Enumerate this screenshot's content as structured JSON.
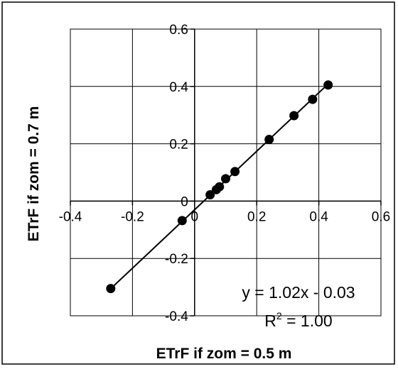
{
  "chart_data": {
    "type": "scatter",
    "xlabel": "ETrF if zom = 0.5 m",
    "ylabel": "ETrF if zom = 0.7 m",
    "xlim": [
      -0.4,
      0.6
    ],
    "ylim": [
      -0.4,
      0.6
    ],
    "x_ticks": [
      -0.4,
      -0.2,
      0,
      0.2,
      0.4,
      0.6
    ],
    "y_ticks": [
      -0.4,
      -0.2,
      0,
      0.2,
      0.4,
      0.6
    ],
    "x_tick_labels": [
      "-0.4",
      "-0.2",
      "0",
      "0.2",
      "0.4",
      "0.6"
    ],
    "y_tick_labels": [
      "-0.4",
      "-0.2",
      "0",
      "0.2",
      "0.4",
      "0.6"
    ],
    "grid": true,
    "series": [
      {
        "points": [
          [
            -0.27,
            -0.305
          ],
          [
            -0.04,
            -0.068
          ],
          [
            0.05,
            0.022
          ],
          [
            0.07,
            0.04
          ],
          [
            0.08,
            0.05
          ],
          [
            0.1,
            0.078
          ],
          [
            0.13,
            0.103
          ],
          [
            0.24,
            0.215
          ],
          [
            0.32,
            0.298
          ],
          [
            0.38,
            0.355
          ],
          [
            0.43,
            0.405
          ]
        ],
        "color": "#000000"
      }
    ],
    "trendline": {
      "slope": 1.02,
      "intercept": -0.03,
      "x_range": [
        -0.27,
        0.43
      ]
    },
    "annotations": {
      "equation": "y = 1.02x - 0.03",
      "r2_prefix": "R",
      "r2_superscript": "2",
      "r2_value": " = 1.00"
    }
  }
}
